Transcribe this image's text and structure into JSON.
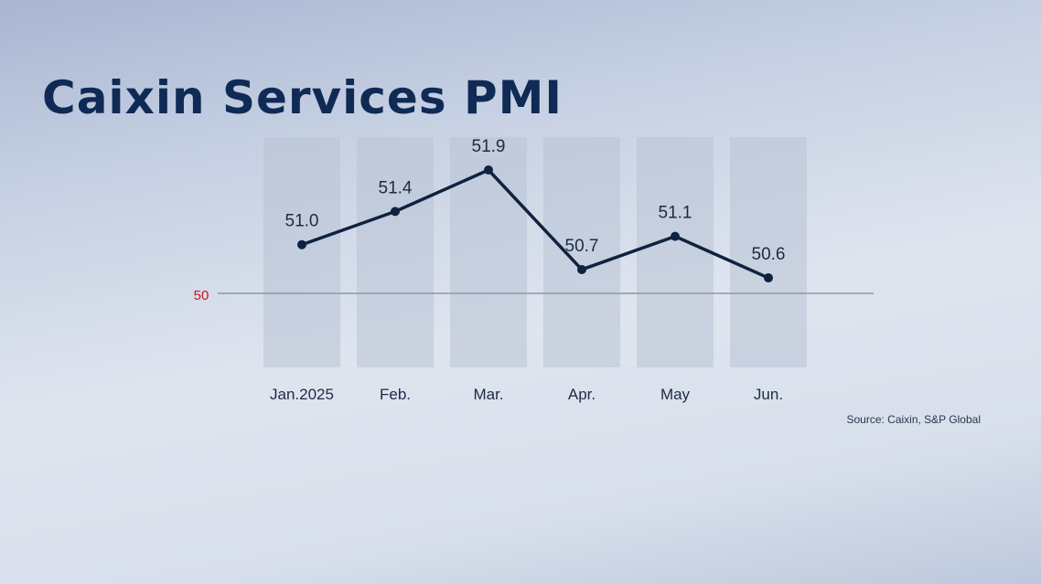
{
  "chart_data": {
    "type": "line",
    "title": "Caixin Services PMI",
    "categories": [
      "Jan.2025",
      "Feb.",
      "Mar.",
      "Apr.",
      "May",
      "Jun."
    ],
    "values": [
      51.0,
      51.4,
      51.9,
      50.7,
      51.1,
      50.6
    ],
    "data_labels": [
      "51.0",
      "51.4",
      "51.9",
      "50.7",
      "51.1",
      "50.6"
    ],
    "reference_line": {
      "value": 50,
      "label": "50",
      "label_color": "#d0141e"
    },
    "line_color": "#0f2240",
    "source": "Source: Caixin, S&P Global"
  }
}
